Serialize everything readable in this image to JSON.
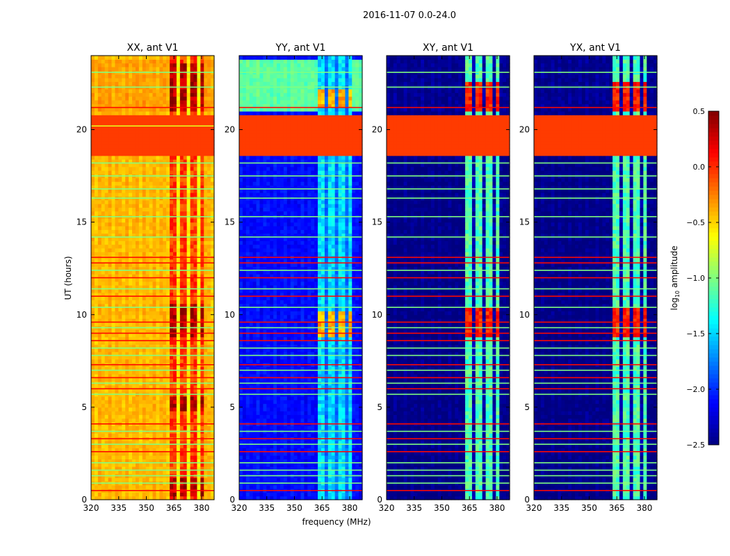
{
  "chart_data": {
    "type": "heatmap",
    "suptitle": "2016-11-07 0.0-24.0",
    "xlabel": "frequency (MHz)",
    "ylabel": "UT (hours)",
    "xlim": [
      320,
      386.8
    ],
    "ylim": [
      0,
      24
    ],
    "xticks": [
      320,
      335,
      350,
      365,
      380
    ],
    "yticks": [
      0,
      5,
      10,
      15,
      20
    ],
    "colorbar": {
      "label_main": "log",
      "label_sub": "10",
      "label_rest": " amplitude",
      "range": [
        -2.5,
        0.5
      ],
      "ticks": [
        "0.5",
        "0.0",
        "−0.5",
        "−1.0",
        "−1.5",
        "−2.0",
        "−2.5"
      ],
      "tick_values": [
        0.5,
        0.0,
        -0.5,
        -1.0,
        -1.5,
        -2.0,
        -2.5
      ],
      "colormap": "jet"
    },
    "flagged_hours": [
      18.7,
      20.8
    ],
    "flagged_value": -0.05,
    "rfi_band_mhz": [
      362,
      382
    ],
    "band_gaps_mhz": [
      [
        367.3,
        368.6
      ],
      [
        372.4,
        373.6
      ],
      [
        377.4,
        378.6
      ]
    ],
    "panels": [
      {
        "title": "XX, ant V1",
        "base": -0.42,
        "band": -0.05,
        "gap": -0.6,
        "active_band": 0.35,
        "active_hours": [
          [
            0.3,
            1.2
          ],
          [
            4.8,
            5.6
          ],
          [
            8.8,
            10.6
          ],
          [
            21.0,
            23.6
          ]
        ],
        "upper_base": -0.35
      },
      {
        "title": "YY, ant V1",
        "base": -2.1,
        "band": -1.45,
        "gap": -1.8,
        "active_band": -0.4,
        "active_hours": [
          [
            8.8,
            10.2
          ],
          [
            21.2,
            22.2
          ]
        ],
        "upper_base": -1.1
      },
      {
        "title": "XY, ant V1",
        "base": -2.48,
        "band": -1.15,
        "gap": -2.4,
        "active_band": 0.05,
        "active_hours": [
          [
            8.9,
            10.3
          ],
          [
            21.0,
            22.6
          ]
        ],
        "upper_base": -2.45
      },
      {
        "title": "YX, ant V1",
        "base": -2.48,
        "band": -1.15,
        "gap": -2.4,
        "active_band": 0.05,
        "active_hours": [
          [
            8.9,
            10.3
          ],
          [
            21.0,
            22.6
          ]
        ],
        "upper_base": -2.45
      }
    ],
    "rfi_lines": [
      [
        0.5,
        0.1
      ],
      [
        0.9,
        -1.0
      ],
      [
        1.3,
        -1.0
      ],
      [
        1.6,
        -1.0
      ],
      [
        2.0,
        -1.0
      ],
      [
        2.6,
        0.1
      ],
      [
        3.0,
        -1.0
      ],
      [
        3.3,
        0.1
      ],
      [
        3.7,
        -1.0
      ],
      [
        4.1,
        0.1
      ],
      [
        5.7,
        -1.0
      ],
      [
        6.0,
        0.1
      ],
      [
        6.3,
        -1.0
      ],
      [
        6.6,
        0.1
      ],
      [
        7.0,
        -1.0
      ],
      [
        7.3,
        0.1
      ],
      [
        7.8,
        -1.0
      ],
      [
        8.2,
        -1.0
      ],
      [
        8.6,
        0.1
      ],
      [
        9.0,
        0.1
      ],
      [
        9.3,
        -1.0
      ],
      [
        9.6,
        0.1
      ],
      [
        10.4,
        -1.0
      ],
      [
        11.0,
        0.1
      ],
      [
        11.4,
        -1.0
      ],
      [
        12.0,
        0.1
      ],
      [
        12.4,
        -1.0
      ],
      [
        12.8,
        0.1
      ],
      [
        13.1,
        0.1
      ],
      [
        14.2,
        -1.0
      ],
      [
        15.3,
        -1.0
      ],
      [
        16.3,
        -1.0
      ],
      [
        16.8,
        -1.0
      ],
      [
        17.5,
        -1.0
      ],
      [
        18.2,
        -1.0
      ],
      [
        20.2,
        -0.7
      ],
      [
        21.2,
        0.1
      ],
      [
        22.3,
        -1.0
      ],
      [
        23.1,
        -1.0
      ]
    ]
  }
}
